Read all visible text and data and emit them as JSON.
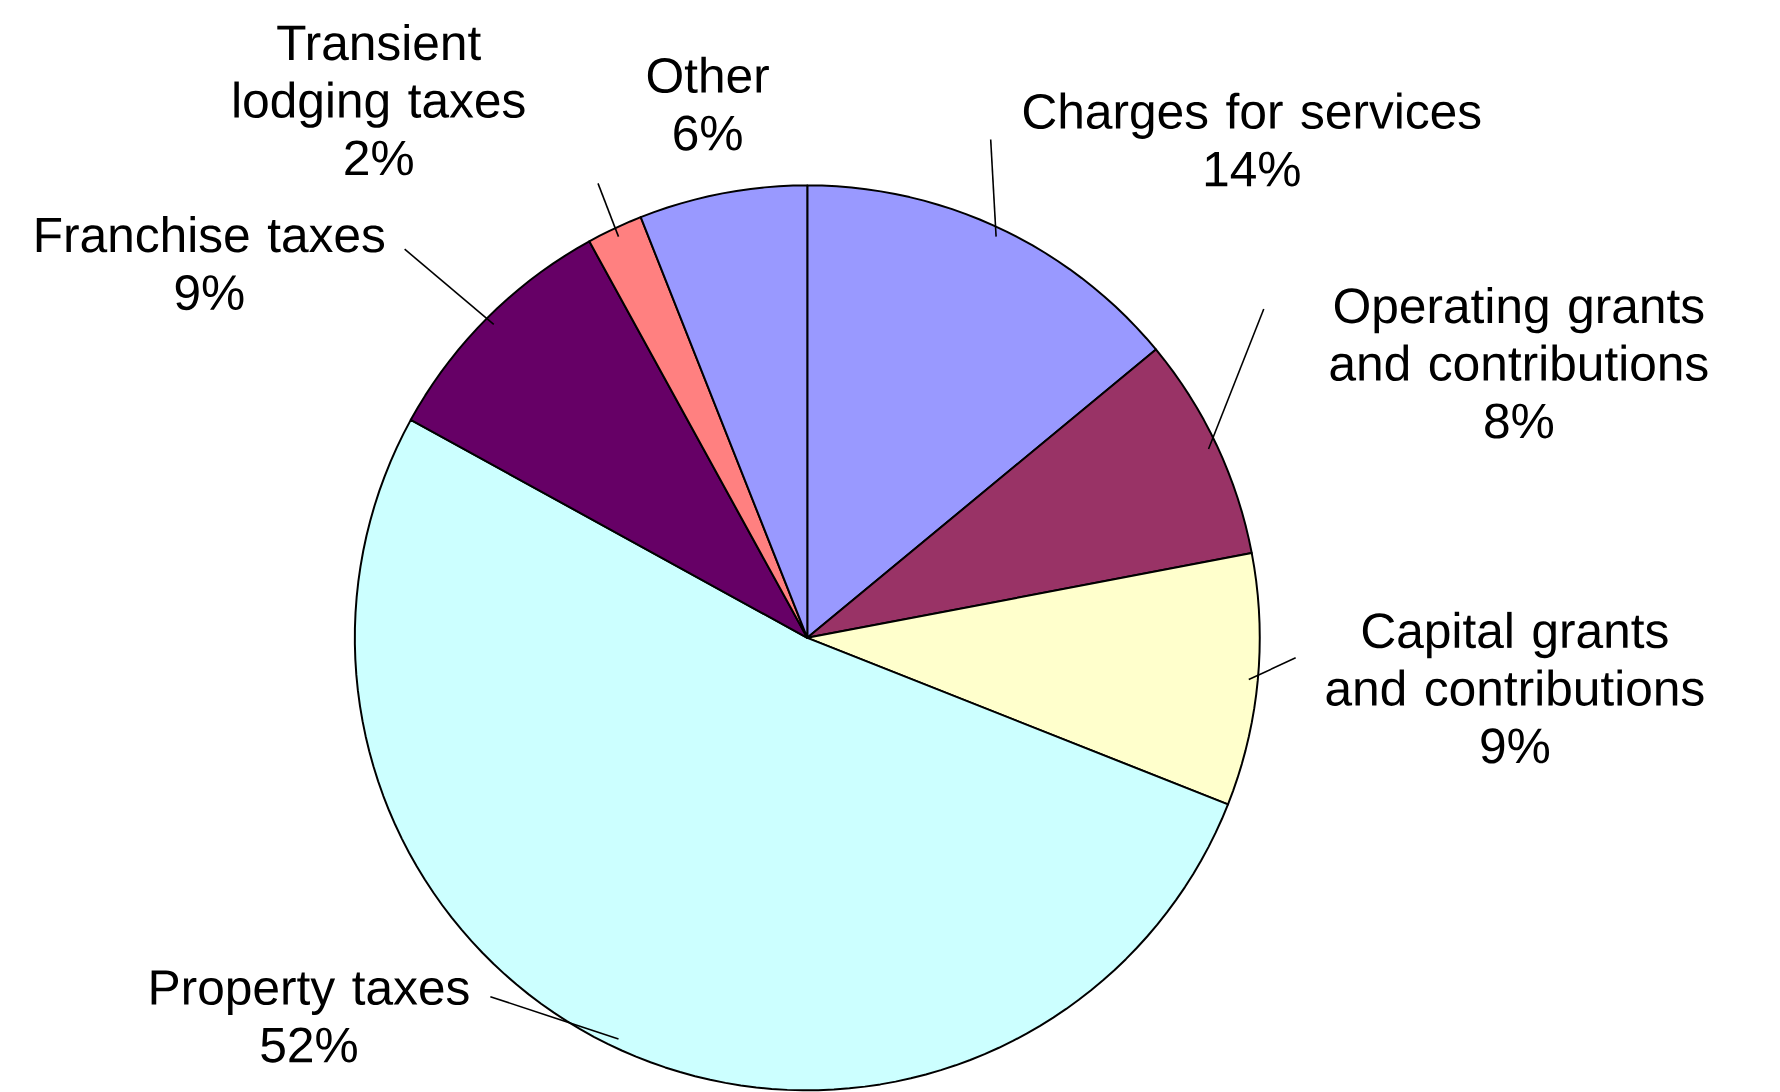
{
  "chart_data": {
    "type": "pie",
    "categories": [
      "Charges for services",
      "Operating grants and contributions",
      "Capital grants and contributions",
      "Property taxes",
      "Franchise taxes",
      "Transient lodging taxes",
      "Other"
    ],
    "values": [
      14,
      8,
      9,
      52,
      9,
      2,
      6
    ],
    "value_labels": [
      "14%",
      "8%",
      "9%",
      "52%",
      "9%",
      "2%",
      "6%"
    ],
    "colors": [
      "#9999ff",
      "#993366",
      "#ffffcc",
      "#ccffff",
      "#660066",
      "#ff8080",
      "#9999ff"
    ]
  }
}
